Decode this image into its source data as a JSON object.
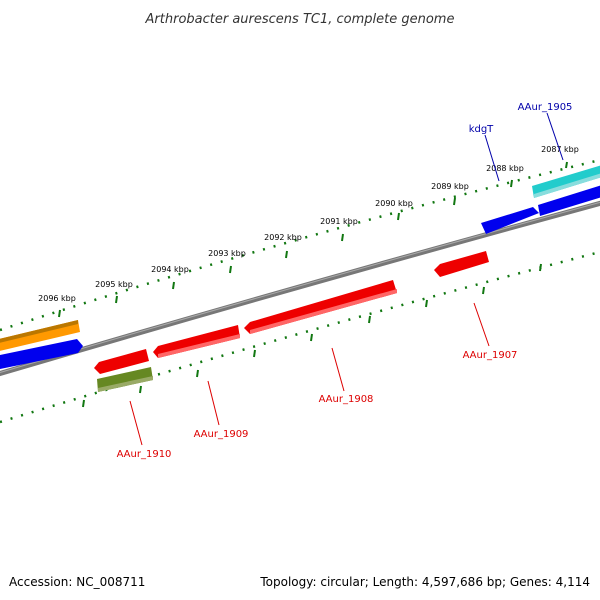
{
  "title": "Arthrobacter aurescens TC1, complete genome",
  "footer": {
    "accession": "Accession: NC_008711",
    "topology": "Topology: circular; Length: 4,597,686 bp; Genes: 4,114"
  },
  "ruler": {
    "tick_labels": [
      "2087 kbp",
      "2088 kbp",
      "2089 kbp",
      "2090 kbp",
      "2091 kbp",
      "2092 kbp",
      "2093 kbp",
      "2094 kbp",
      "2095 kbp",
      "2096 kbp"
    ]
  },
  "genes_labeled": [
    {
      "name": "AAur_1905",
      "color": "#0000aa"
    },
    {
      "name": "kdgT",
      "color": "#0000aa"
    },
    {
      "name": "AAur_1907",
      "color": "#dd0000"
    },
    {
      "name": "AAur_1908",
      "color": "#dd0000"
    },
    {
      "name": "AAur_1909",
      "color": "#dd0000"
    },
    {
      "name": "AAur_1910",
      "color": "#dd0000"
    }
  ],
  "colors": {
    "forward_cds": "#0000ee",
    "reverse_cds": "#ee0000",
    "rna": "#22cccc",
    "other_feature": "#ff9900",
    "olive_feature": "#668822",
    "backbone": "#777777",
    "ruler_ticks": "#117711"
  }
}
